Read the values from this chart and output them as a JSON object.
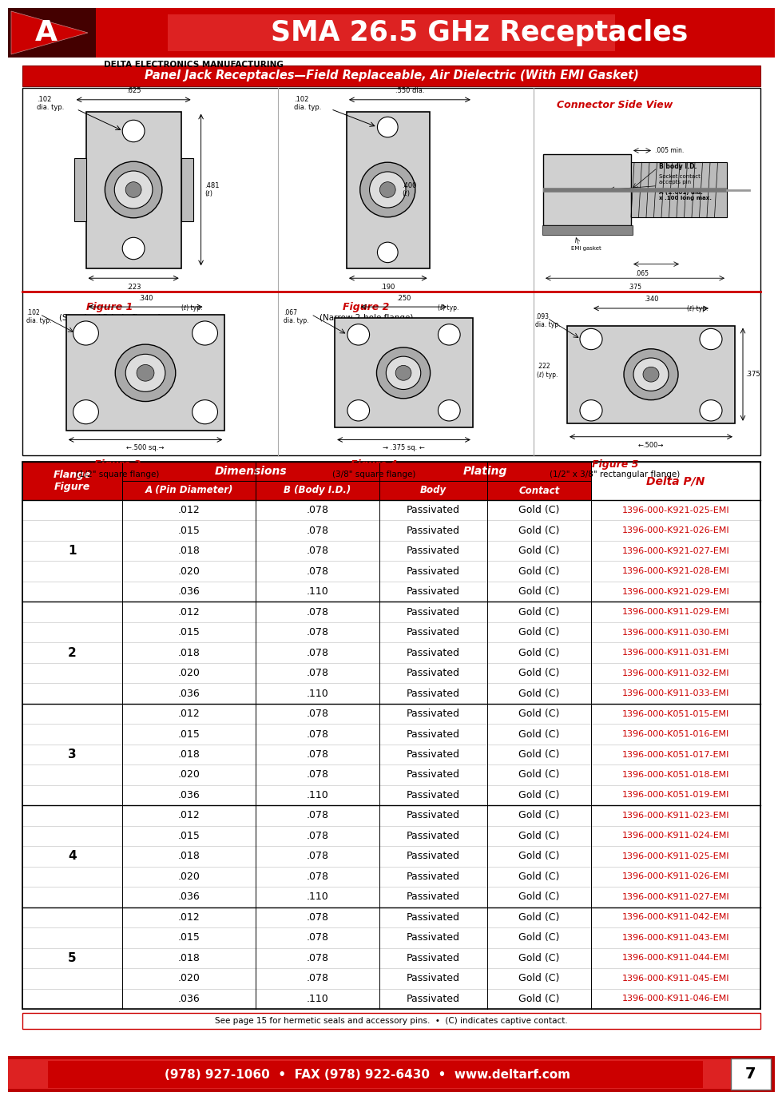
{
  "title": "SMA 26.5 GHz Receptacles",
  "subtitle": "Panel Jack Receptacles—Field Replaceable, Air Dielectric (With EMI Gasket)",
  "company": "DELTA ELECTRONICS MANUFACTURING",
  "red": "#cc0000",
  "dark_red": "#660000",
  "footer_text": "(978) 927-1060  •  FAX (978) 922-6430  •  www.deltarf.com",
  "footnote": "See page 15 for hermetic seals and accessory pins.  •  (C) indicates captive contact.",
  "page_number": "7",
  "fig1_label": "Figure 1",
  "fig1_sub": "(Standard 2-hole flange)",
  "fig2_label": "Figure 2",
  "fig2_sub": "(Narrow 2-hole flange)",
  "fig3_label": "Figure 3",
  "fig3_sub": "(1/2\" square flange)",
  "fig4_label": "Figure 4",
  "fig4_sub": "(3/8\" square flange)",
  "fig5_label": "Figure 5",
  "fig5_sub": "(1/2\" x 3/8\" rectangular flange)",
  "csv_label": "Connector Side View",
  "dim_header": "Dimensions",
  "plating_header": "Plating",
  "dpn_header": "Delta P/N",
  "flange_header": "Flange\nFigure",
  "col_a": "A (Pin Diameter)",
  "col_b": "B (Body I.D.)",
  "col_body": "Body",
  "col_contact": "Contact",
  "table_data": [
    [
      "1",
      ".012",
      ".078",
      "Passivated",
      "Gold (C)",
      "1396-000-K921-025-EMI"
    ],
    [
      "1",
      ".015",
      ".078",
      "Passivated",
      "Gold (C)",
      "1396-000-K921-026-EMI"
    ],
    [
      "1",
      ".018",
      ".078",
      "Passivated",
      "Gold (C)",
      "1396-000-K921-027-EMI"
    ],
    [
      "1",
      ".020",
      ".078",
      "Passivated",
      "Gold (C)",
      "1396-000-K921-028-EMI"
    ],
    [
      "1",
      ".036",
      ".110",
      "Passivated",
      "Gold (C)",
      "1396-000-K921-029-EMI"
    ],
    [
      "2",
      ".012",
      ".078",
      "Passivated",
      "Gold (C)",
      "1396-000-K911-029-EMI"
    ],
    [
      "2",
      ".015",
      ".078",
      "Passivated",
      "Gold (C)",
      "1396-000-K911-030-EMI"
    ],
    [
      "2",
      ".018",
      ".078",
      "Passivated",
      "Gold (C)",
      "1396-000-K911-031-EMI"
    ],
    [
      "2",
      ".020",
      ".078",
      "Passivated",
      "Gold (C)",
      "1396-000-K911-032-EMI"
    ],
    [
      "2",
      ".036",
      ".110",
      "Passivated",
      "Gold (C)",
      "1396-000-K911-033-EMI"
    ],
    [
      "3",
      ".012",
      ".078",
      "Passivated",
      "Gold (C)",
      "1396-000-K051-015-EMI"
    ],
    [
      "3",
      ".015",
      ".078",
      "Passivated",
      "Gold (C)",
      "1396-000-K051-016-EMI"
    ],
    [
      "3",
      ".018",
      ".078",
      "Passivated",
      "Gold (C)",
      "1396-000-K051-017-EMI"
    ],
    [
      "3",
      ".020",
      ".078",
      "Passivated",
      "Gold (C)",
      "1396-000-K051-018-EMI"
    ],
    [
      "3",
      ".036",
      ".110",
      "Passivated",
      "Gold (C)",
      "1396-000-K051-019-EMI"
    ],
    [
      "4",
      ".012",
      ".078",
      "Passivated",
      "Gold (C)",
      "1396-000-K911-023-EMI"
    ],
    [
      "4",
      ".015",
      ".078",
      "Passivated",
      "Gold (C)",
      "1396-000-K911-024-EMI"
    ],
    [
      "4",
      ".018",
      ".078",
      "Passivated",
      "Gold (C)",
      "1396-000-K911-025-EMI"
    ],
    [
      "4",
      ".020",
      ".078",
      "Passivated",
      "Gold (C)",
      "1396-000-K911-026-EMI"
    ],
    [
      "4",
      ".036",
      ".110",
      "Passivated",
      "Gold (C)",
      "1396-000-K911-027-EMI"
    ],
    [
      "5",
      ".012",
      ".078",
      "Passivated",
      "Gold (C)",
      "1396-000-K911-042-EMI"
    ],
    [
      "5",
      ".015",
      ".078",
      "Passivated",
      "Gold (C)",
      "1396-000-K911-043-EMI"
    ],
    [
      "5",
      ".018",
      ".078",
      "Passivated",
      "Gold (C)",
      "1396-000-K911-044-EMI"
    ],
    [
      "5",
      ".020",
      ".078",
      "Passivated",
      "Gold (C)",
      "1396-000-K911-045-EMI"
    ],
    [
      "5",
      ".036",
      ".110",
      "Passivated",
      "Gold (C)",
      "1396-000-K911-046-EMI"
    ]
  ]
}
